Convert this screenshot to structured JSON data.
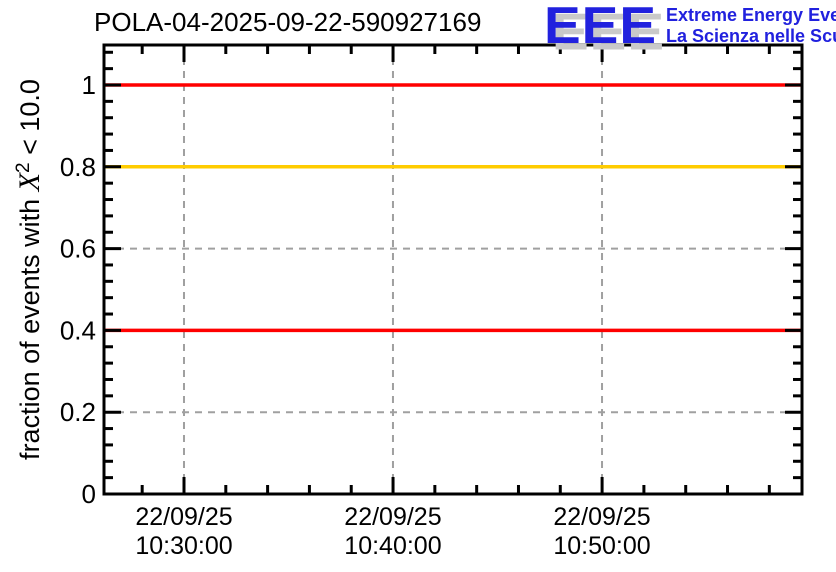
{
  "header": {
    "title": "POLA-04-2025-09-22-590927169",
    "logo": {
      "acronym": "EEE",
      "line1": "Extreme Energy Events",
      "line2": "La Scienza nelle Scuole",
      "text_color": "#2121de",
      "shadow_color": "#c9c9c9"
    }
  },
  "chart_data": {
    "type": "line",
    "title": "POLA-04-2025-09-22-590927169",
    "ylabel_plain": "fraction of events with X^2 < 10.0",
    "ylabel_parts": {
      "prefix": "fraction of events with ",
      "symbol": "X",
      "superscript": "2",
      "suffix": " < 10.0"
    },
    "xlabel": "",
    "x_axis_type": "datetime",
    "ylim": [
      0,
      1.098
    ],
    "grid": true,
    "legend": "none",
    "background": "#ffffff",
    "axis_color": "#000000",
    "grid_color": "#a0a0a0",
    "y_ticks": [
      {
        "value": 0.0,
        "label": "0"
      },
      {
        "value": 0.2,
        "label": "0.2"
      },
      {
        "value": 0.4,
        "label": "0.4"
      },
      {
        "value": 0.6,
        "label": "0.6"
      },
      {
        "value": 0.8,
        "label": "0.8"
      },
      {
        "value": 1.0,
        "label": "1"
      }
    ],
    "y_minor_step": 0.04,
    "x_ticks": [
      {
        "frac": 0.1146,
        "date": "22/09/25",
        "time": "10:30:00"
      },
      {
        "frac": 0.414,
        "date": "22/09/25",
        "time": "10:40:00"
      },
      {
        "frac": 0.7135,
        "date": "22/09/25",
        "time": "10:50:00"
      }
    ],
    "x_minor_start_frac": 0.0547,
    "x_minor_step_frac": 0.0599,
    "x_minor_minutes_per_division": 2,
    "reference_lines": [
      {
        "y": 1.0,
        "color": "#ff0000",
        "name": "level-line-1p0"
      },
      {
        "y": 0.8,
        "color": "#ffcc00",
        "name": "warning-threshold-0p8"
      },
      {
        "y": 0.4,
        "color": "#ff0000",
        "name": "alarm-threshold-0p4"
      }
    ]
  }
}
